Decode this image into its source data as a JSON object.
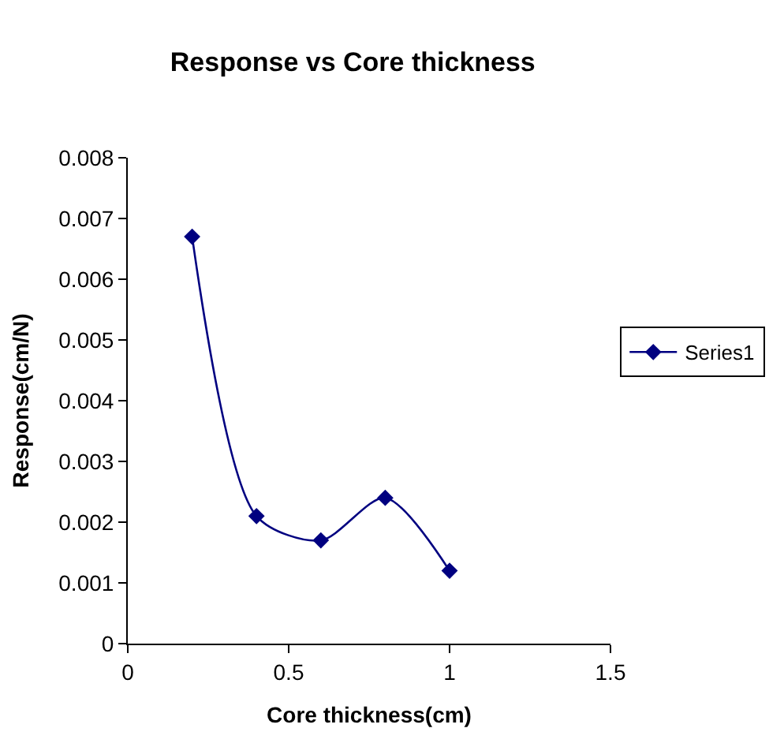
{
  "chart_data": {
    "type": "line",
    "title": "Response vs Core thickness",
    "xlabel": "Core thickness(cm)",
    "ylabel": "Response(cm/N)",
    "x": [
      0.2,
      0.4,
      0.6,
      0.8,
      1.0
    ],
    "series": [
      {
        "name": "Series1",
        "color": "#000080",
        "values": [
          0.0067,
          0.0021,
          0.0017,
          0.0024,
          0.0012
        ]
      }
    ],
    "xlim": [
      0,
      1.5
    ],
    "xticks": [
      0,
      0.5,
      1,
      1.5
    ],
    "ylim": [
      0,
      0.008
    ],
    "yticks": [
      0,
      0.001,
      0.002,
      0.003,
      0.004,
      0.005,
      0.006,
      0.007,
      0.008
    ],
    "legend": "right",
    "marker": "diamond",
    "line_style": "solid"
  }
}
